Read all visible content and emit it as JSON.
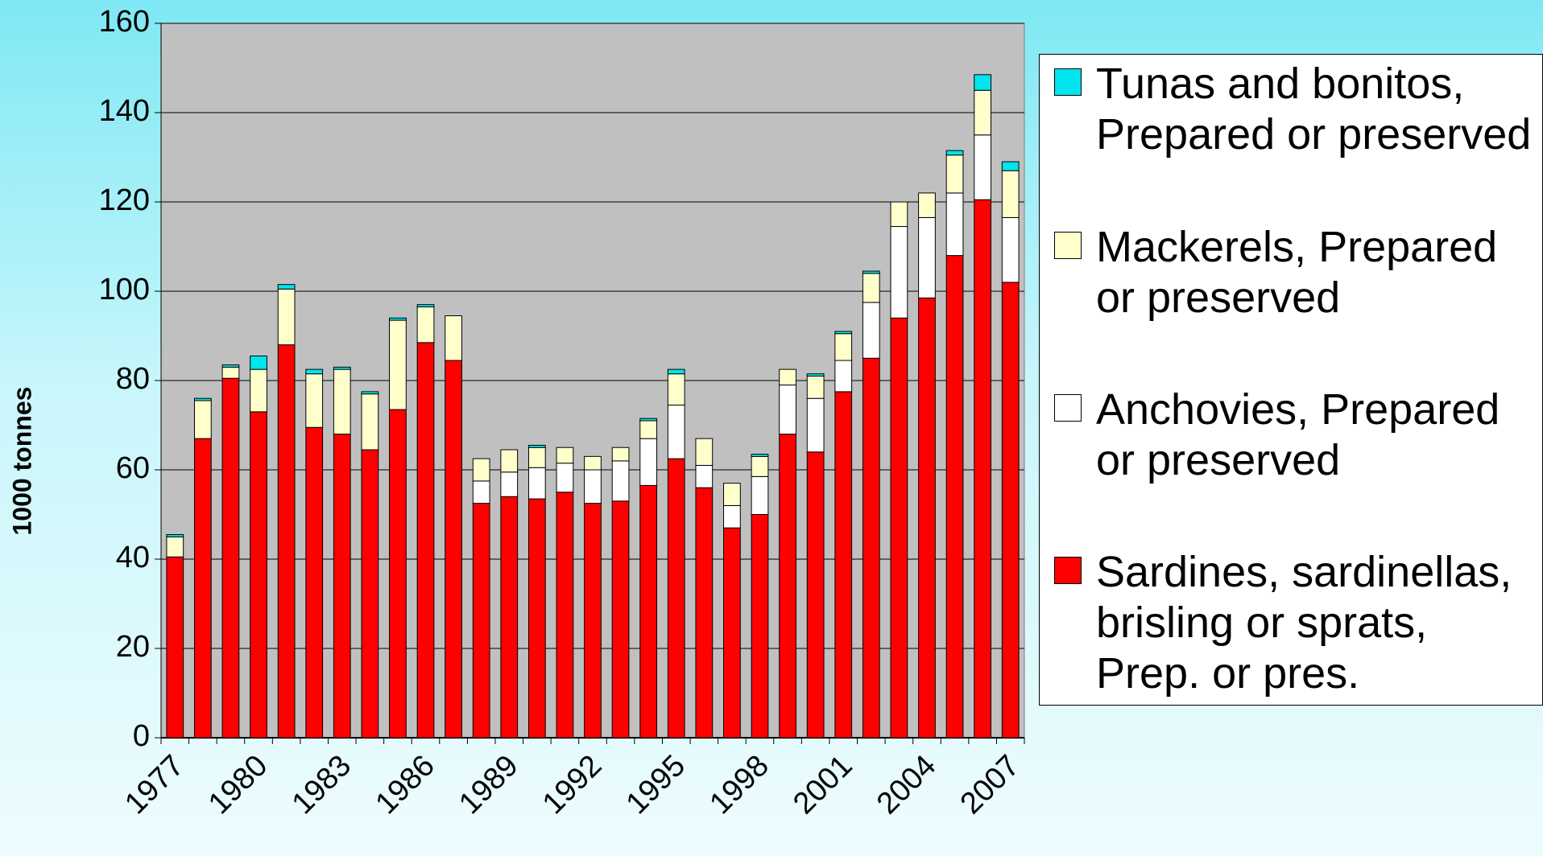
{
  "chart_data": {
    "type": "stacked-bar",
    "y_label": "1000 tonnes",
    "categories": [
      "1977",
      null,
      null,
      "1980",
      null,
      null,
      "1983",
      null,
      null,
      "1986",
      null,
      null,
      "1989",
      null,
      null,
      "1992",
      null,
      null,
      "1995",
      null,
      null,
      "1998",
      null,
      null,
      "2001",
      null,
      null,
      "2004",
      null,
      null,
      "2007"
    ],
    "series": [
      {
        "name": "Sardines, sardinellas, brisling or sprats, Prep. or pres.",
        "color": "#ff0000",
        "values": [
          40.5,
          67,
          80.5,
          73,
          88,
          69.5,
          68,
          64.5,
          73.5,
          88.5,
          84.5,
          52.5,
          54,
          53.5,
          55,
          52.5,
          53,
          56.5,
          62.5,
          56,
          47,
          50,
          68,
          64,
          77.5,
          85,
          94,
          98.5,
          108,
          120.5,
          102
        ]
      },
      {
        "name": "Anchovies, Prepared or preserved",
        "color": "#ffffff",
        "values": [
          0,
          0,
          0,
          0,
          0,
          0,
          0,
          0,
          0,
          0,
          0,
          5,
          5.5,
          7,
          6.5,
          7.5,
          9,
          10.5,
          12,
          5,
          5,
          8.5,
          11,
          12,
          7,
          12.5,
          20.5,
          18,
          14,
          14.5,
          14.5
        ]
      },
      {
        "name": "Mackerels, Prepared or preserved",
        "color": "#ffffcc",
        "values": [
          4.5,
          8.5,
          2.5,
          9.5,
          12.5,
          12,
          14.5,
          12.5,
          20,
          8,
          10,
          5,
          5,
          4.5,
          3.5,
          3,
          3,
          4,
          7,
          6,
          5,
          4.5,
          3.5,
          5,
          6,
          6.5,
          5.5,
          5.5,
          8.5,
          10,
          10.5
        ]
      },
      {
        "name": "Tunas and bonitos, Prepared or preserved",
        "color": "#00e5ee",
        "values": [
          0.5,
          0.5,
          0.5,
          3,
          1,
          1,
          0.5,
          0.5,
          0.5,
          0.5,
          0,
          0,
          0,
          0.5,
          0,
          0,
          0,
          0.5,
          1,
          0,
          0,
          0.5,
          0,
          0.5,
          0.5,
          0.5,
          0,
          0,
          1,
          3.5,
          2
        ]
      }
    ],
    "ylim": [
      0,
      160
    ],
    "yticks": [
      0,
      20,
      40,
      60,
      80,
      100,
      120,
      140,
      160
    ],
    "grid": true,
    "plot_background": "#c0c0c0",
    "legend": "right"
  }
}
